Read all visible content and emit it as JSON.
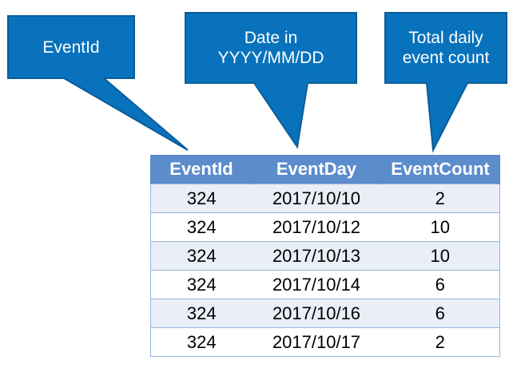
{
  "callouts": {
    "event_id": {
      "lines": [
        "EventId"
      ]
    },
    "event_day": {
      "lines": [
        "Date in",
        "YYYY/MM/DD"
      ]
    },
    "event_count": {
      "lines": [
        "Total daily",
        "event count"
      ]
    }
  },
  "colors": {
    "callout_fill": "#0872bc",
    "callout_border": "#0a5c97",
    "table_header": "#5b8ccb",
    "table_stripe": "#e9eef7",
    "table_border": "#9bb6dc"
  },
  "table": {
    "headers": [
      "EventId",
      "EventDay",
      "EventCount"
    ],
    "rows": [
      [
        "324",
        "2017/10/10",
        "2"
      ],
      [
        "324",
        "2017/10/12",
        "10"
      ],
      [
        "324",
        "2017/10/13",
        "10"
      ],
      [
        "324",
        "2017/10/14",
        "6"
      ],
      [
        "324",
        "2017/10/16",
        "6"
      ],
      [
        "324",
        "2017/10/17",
        "2"
      ]
    ]
  }
}
